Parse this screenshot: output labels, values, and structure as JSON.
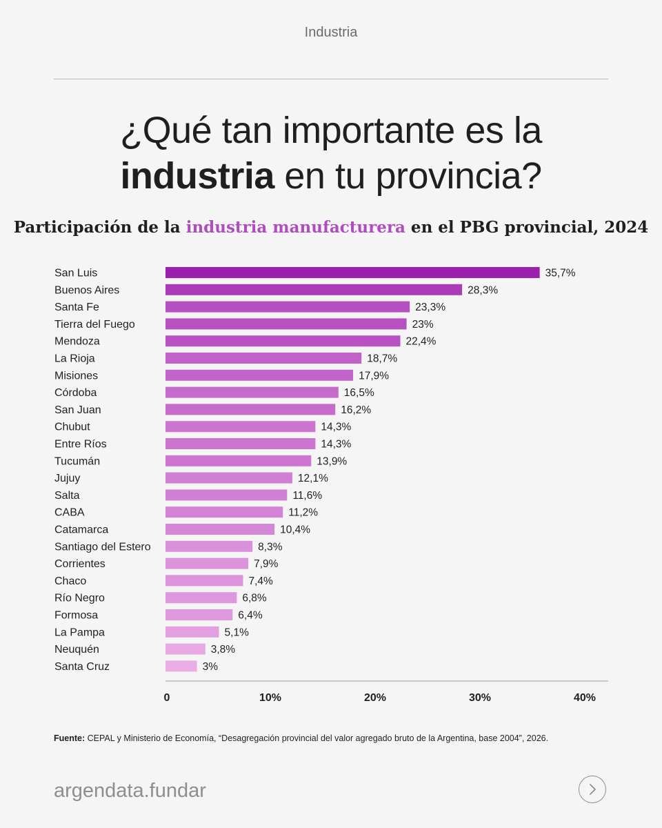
{
  "header": {
    "category": "Industria"
  },
  "headline": {
    "line1": "¿Qué tan importante es la",
    "bold": "industria",
    "rest": " en tu provincia?"
  },
  "subtitle": {
    "pre": "Participación de la ",
    "highlight": "industria manufacturera",
    "post": " en el PBG provincial, 2024"
  },
  "chart_data": {
    "type": "bar",
    "orientation": "horizontal",
    "categories": [
      "San Luis",
      "Buenos Aires",
      "Santa Fe",
      "Tierra del Fuego",
      "Mendoza",
      "La Rioja",
      "Misiones",
      "Córdoba",
      "San Juan",
      "Chubut",
      "Entre Ríos",
      "Tucumán",
      "Jujuy",
      "Salta",
      "CABA",
      "Catamarca",
      "Santiago del Estero",
      "Corrientes",
      "Chaco",
      "Río Negro",
      "Formosa",
      "La Pampa",
      "Neuquén",
      "Santa Cruz"
    ],
    "values": [
      35.7,
      28.3,
      23.3,
      23,
      22.4,
      18.7,
      17.9,
      16.5,
      16.2,
      14.3,
      14.3,
      13.9,
      12.1,
      11.6,
      11.2,
      10.4,
      8.3,
      7.9,
      7.4,
      6.8,
      6.4,
      5.1,
      3.8,
      3
    ],
    "value_labels": [
      "35,7%",
      "28,3%",
      "23,3%",
      "23%",
      "22,4%",
      "18,7%",
      "17,9%",
      "16,5%",
      "16,2%",
      "14,3%",
      "14,3%",
      "13,9%",
      "12,1%",
      "11,6%",
      "11,2%",
      "10,4%",
      "8,3%",
      "7,9%",
      "7,4%",
      "6,8%",
      "6,4%",
      "5,1%",
      "3,8%",
      "3%"
    ],
    "xlim": [
      0,
      40
    ],
    "xticks": [
      0,
      10,
      20,
      30,
      40
    ],
    "xtick_labels": [
      "0",
      "10%",
      "20%",
      "30%",
      "40%"
    ],
    "grid": false,
    "color_high": "#9c1fae",
    "color_low": "#f6c4ef"
  },
  "footer": {
    "source_label": "Fuente:",
    "source_text": " CEPAL y Ministerio de Economía, “Desagregación provincial del valor agregado bruto de la Argentina, base 2004”, 2026.",
    "brand": "argendata.fundar",
    "next_icon": "chevron-right-icon"
  }
}
